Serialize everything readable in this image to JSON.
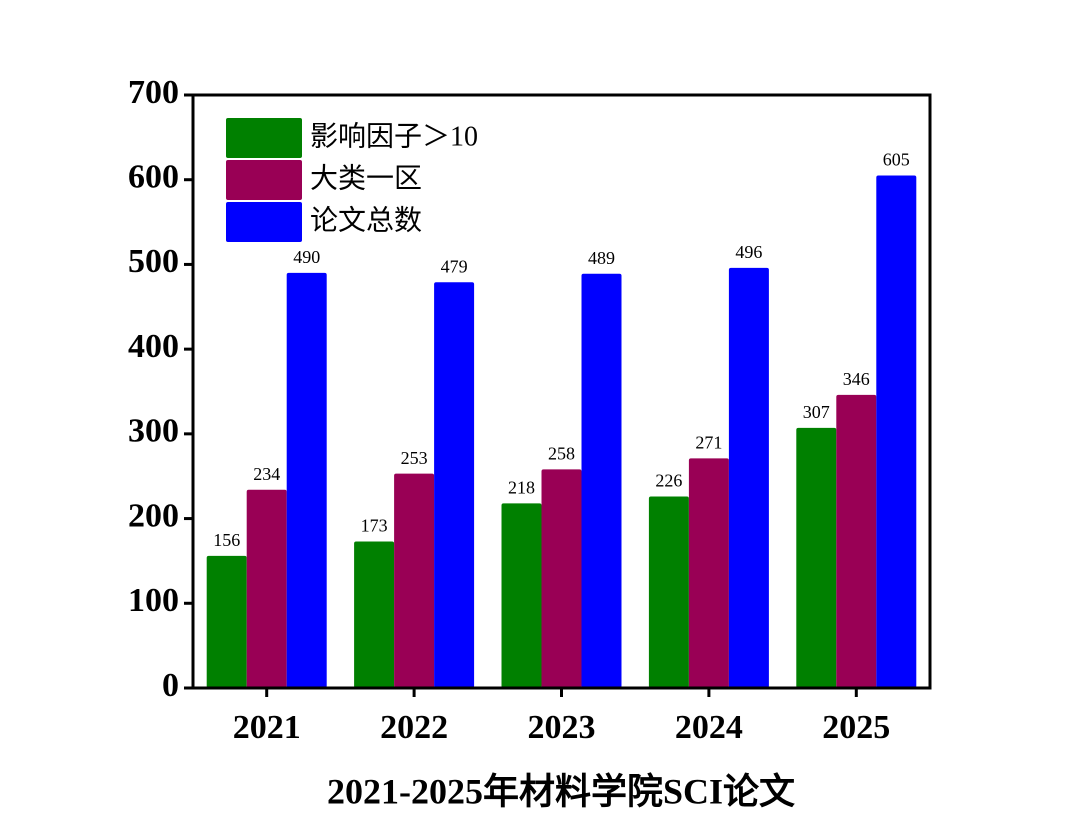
{
  "chart_data": {
    "type": "bar",
    "title": "2021-2025年材料学院SCI论文",
    "categories": [
      "2021",
      "2022",
      "2023",
      "2024",
      "2025"
    ],
    "series": [
      {
        "name": "影响因子＞10",
        "color": "#008000",
        "values": [
          156,
          173,
          218,
          226,
          307
        ]
      },
      {
        "name": "大类一区",
        "color": "#990055",
        "values": [
          234,
          253,
          258,
          271,
          346
        ]
      },
      {
        "name": "论文总数",
        "color": "#0000ff",
        "values": [
          490,
          479,
          489,
          496,
          605
        ]
      }
    ],
    "ylim": [
      0,
      700
    ],
    "yticks": [
      0,
      100,
      200,
      300,
      400,
      500,
      600,
      700
    ],
    "legend": "upper-left"
  }
}
